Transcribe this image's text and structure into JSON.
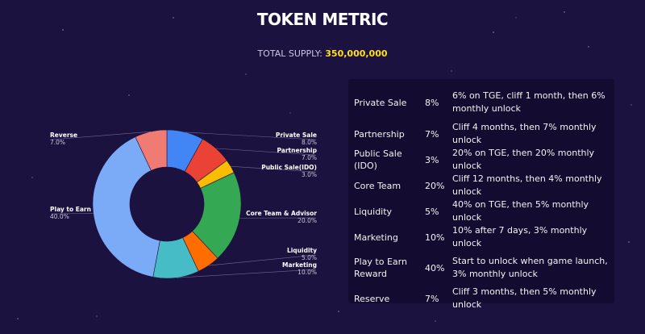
{
  "header": {
    "title": "TOKEN METRIC",
    "supply_label": "TOTAL SUPPLY:",
    "supply_value": "350,000,000"
  },
  "chart_data": {
    "type": "pie",
    "labels": [
      "Private Sale",
      "Partnership",
      "Public Sale(IDO)",
      "Core Team & Advisor",
      "Liquidity",
      "Marketing",
      "Play to Earn",
      "Reverse"
    ],
    "values": [
      8.0,
      7.0,
      3.0,
      20.0,
      5.0,
      10.0,
      40.0,
      7.0
    ],
    "value_labels": [
      "8.0%",
      "7.0%",
      "3.0%",
      "20.0%",
      "5.0%",
      "10.0%",
      "40.0%",
      "7.0%"
    ],
    "colors": [
      "#4285f4",
      "#ea4335",
      "#fbbc04",
      "#34a853",
      "#ff6d01",
      "#46bdc6",
      "#7baaf7",
      "#f07b72"
    ],
    "donut": true
  },
  "table": {
    "rows": [
      {
        "name": "Private Sale",
        "pct": "8%",
        "desc": "6% on TGE, cliff 1 month, then 6% monthly unlock"
      },
      {
        "name": "Partnership",
        "pct": "7%",
        "desc": "Cliff 4 months, then 7% monthly unlock"
      },
      {
        "name": "Public Sale (IDO)",
        "pct": "3%",
        "desc": "20% on TGE, then 20% monthly unlock"
      },
      {
        "name": "Core Team",
        "pct": "20%",
        "desc": "Cliff 12 months, then 4% monthly unlock"
      },
      {
        "name": "Liquidity",
        "pct": "5%",
        "desc": "40% on TGE, then 5% monthly unlock"
      },
      {
        "name": "Marketing",
        "pct": "10%",
        "desc": "10% after 7 days, 3% monthly unlock"
      },
      {
        "name": "Play to Earn Reward",
        "pct": "40%",
        "desc": "Start to unlock when game launch, 3% monthly unlock"
      },
      {
        "name": "Reserve",
        "pct": "7%",
        "desc": "Cliff 3 months, then 5% monthly unlock"
      }
    ]
  }
}
